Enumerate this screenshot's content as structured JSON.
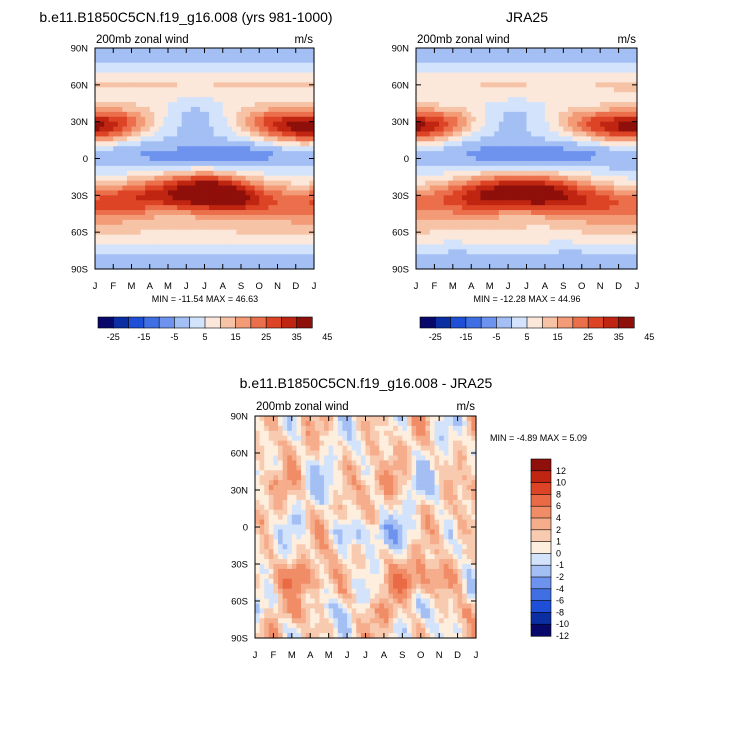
{
  "colors": {
    "blue_red_12": [
      "#08086b",
      "#0b2ea3",
      "#1f4fd6",
      "#3f6fe3",
      "#6e93ee",
      "#a3bff4",
      "#d3e3fb",
      "#fbe8db",
      "#f7c3a6",
      "#f39b77",
      "#ec6f4c",
      "#dd4426",
      "#bf2511",
      "#8f0f0b"
    ],
    "blue_red_diff": [
      "#08086b",
      "#0b2ea3",
      "#1f4fd6",
      "#3f6fe3",
      "#6e93ee",
      "#a3bff4",
      "#d3e3fb",
      "#fdeede",
      "#f8cbb0",
      "#f5ad8c",
      "#f08c66",
      "#ea6a45",
      "#dd4426",
      "#bf2511",
      "#8f0f0b"
    ]
  },
  "chart_data": [
    {
      "type": "heatmap",
      "title": "b.e11.B1850C5CN.f19_g16.008 (yrs 981-1000)",
      "left_label": "200mb zonal wind",
      "right_label": "m/s",
      "x_tick_labels": [
        "J",
        "F",
        "M",
        "A",
        "M",
        "J",
        "J",
        "A",
        "S",
        "O",
        "N",
        "D",
        "J"
      ],
      "y_tick_labels": [
        "90N",
        "60N",
        "30N",
        "0",
        "30S",
        "60S",
        "90S"
      ],
      "y_range": [
        -90,
        90
      ],
      "x_range": [
        0,
        12
      ],
      "stats": "MIN = -11.54 MAX =  46.63",
      "min": -11.54,
      "max": 46.63,
      "levels": [
        -25,
        -20,
        -15,
        -10,
        -5,
        0,
        5,
        10,
        15,
        20,
        25,
        30,
        35,
        40,
        45
      ],
      "colorbar_labels": [
        "-25",
        "-15",
        "-5",
        "5",
        "15",
        "25",
        "35",
        "45"
      ],
      "field": "model"
    },
    {
      "type": "heatmap",
      "title": "JRA25",
      "left_label": "200mb zonal wind",
      "right_label": "m/s",
      "x_tick_labels": [
        "J",
        "F",
        "M",
        "A",
        "M",
        "J",
        "J",
        "A",
        "S",
        "O",
        "N",
        "D",
        "J"
      ],
      "y_tick_labels": [
        "90N",
        "60N",
        "30N",
        "0",
        "30S",
        "60S",
        "90S"
      ],
      "y_range": [
        -90,
        90
      ],
      "x_range": [
        0,
        12
      ],
      "stats": "MIN = -12.28 MAX =  44.96",
      "min": -12.28,
      "max": 44.96,
      "levels": [
        -25,
        -20,
        -15,
        -10,
        -5,
        0,
        5,
        10,
        15,
        20,
        25,
        30,
        35,
        40,
        45
      ],
      "colorbar_labels": [
        "-25",
        "-15",
        "-5",
        "5",
        "15",
        "25",
        "35",
        "45"
      ],
      "field": "obs"
    },
    {
      "type": "heatmap",
      "title": "b.e11.B1850C5CN.f19_g16.008 - JRA25",
      "left_label": "200mb zonal wind",
      "right_label": "m/s",
      "x_tick_labels": [
        "J",
        "F",
        "M",
        "A",
        "M",
        "J",
        "J",
        "A",
        "S",
        "O",
        "N",
        "D",
        "J"
      ],
      "y_tick_labels": [
        "90N",
        "60N",
        "30N",
        "0",
        "30S",
        "60S",
        "90S"
      ],
      "y_range": [
        -90,
        90
      ],
      "x_range": [
        0,
        12
      ],
      "stats": "MIN =  -4.89 MAX =   5.09",
      "min": -4.89,
      "max": 5.09,
      "levels": [
        -12,
        -10,
        -8,
        -6,
        -4,
        -2,
        -1,
        0,
        1,
        2,
        4,
        6,
        8,
        10,
        12
      ],
      "colorbar_labels": [
        "12",
        "10",
        "8",
        "6",
        "4",
        "2",
        "1",
        "0",
        "-1",
        "-2",
        "-4",
        "-6",
        "-8",
        "-10",
        "-12"
      ],
      "field": "diff"
    }
  ]
}
